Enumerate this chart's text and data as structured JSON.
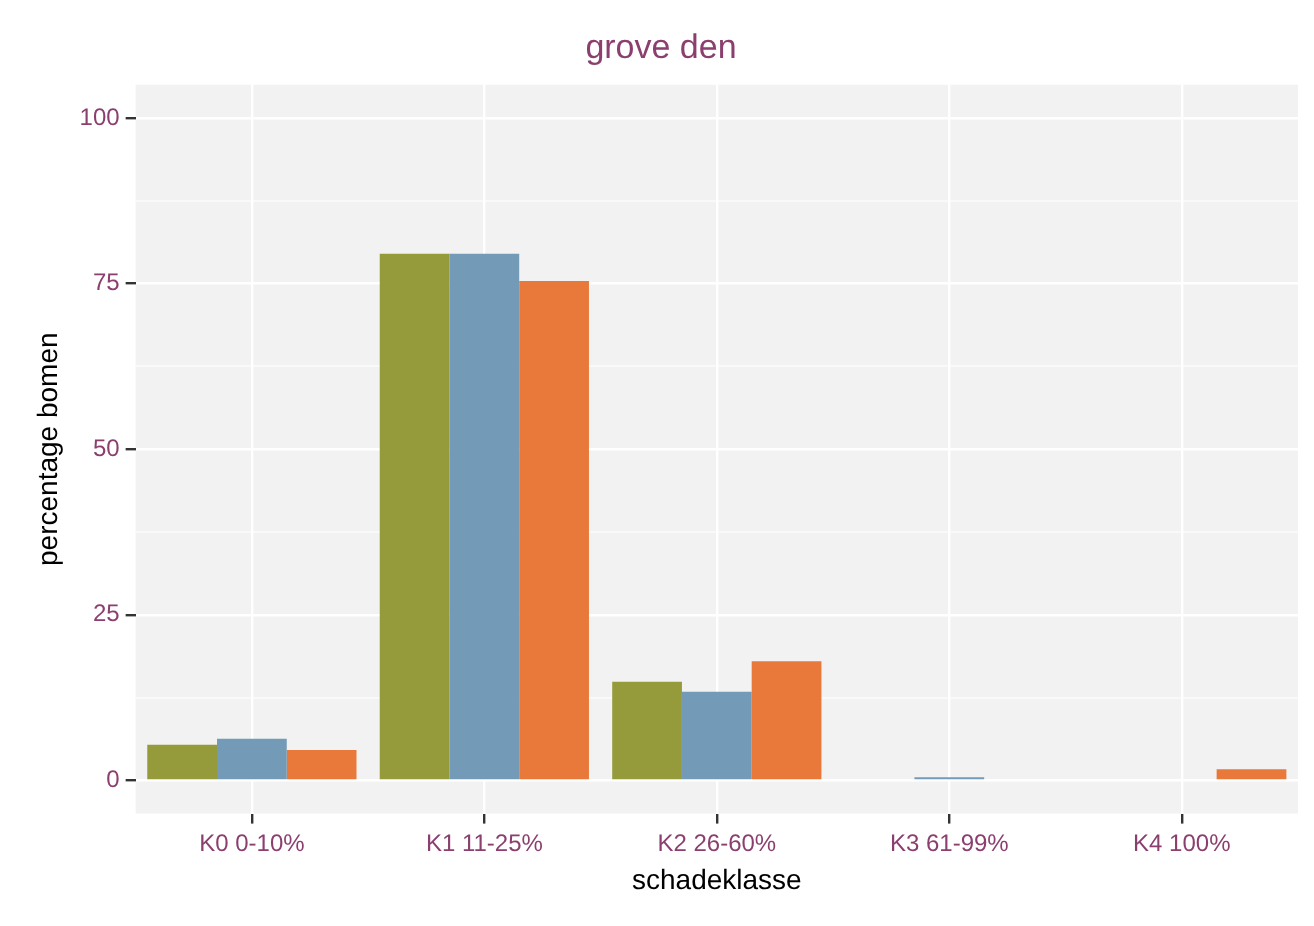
{
  "chart_data": {
    "type": "bar",
    "title": "grove den",
    "xlabel": "schadeklasse",
    "ylabel": "percentage bomen",
    "categories": [
      "K0 0-10%",
      "K1 11-25%",
      "K2 26-60%",
      "K3 61-99%",
      "K4 100%"
    ],
    "series": [
      {
        "color": "#959b3a",
        "values": [
          5.4,
          79.5,
          14.9,
          0,
          0
        ]
      },
      {
        "color": "#739bb7",
        "values": [
          6.3,
          79.5,
          13.4,
          0.5,
          0
        ]
      },
      {
        "color": "#e8793a",
        "values": [
          4.6,
          75.4,
          18,
          0,
          1.7
        ]
      }
    ],
    "ylim": [
      -5,
      105
    ],
    "yticks": [
      0,
      {
        "value": 12.5,
        "label": null
      },
      25,
      {
        "value": 37.5,
        "label": null
      },
      50,
      {
        "value": 62.5,
        "label": null
      },
      75,
      {
        "value": 87.5,
        "label": null
      },
      100
    ],
    "grid": true
  }
}
